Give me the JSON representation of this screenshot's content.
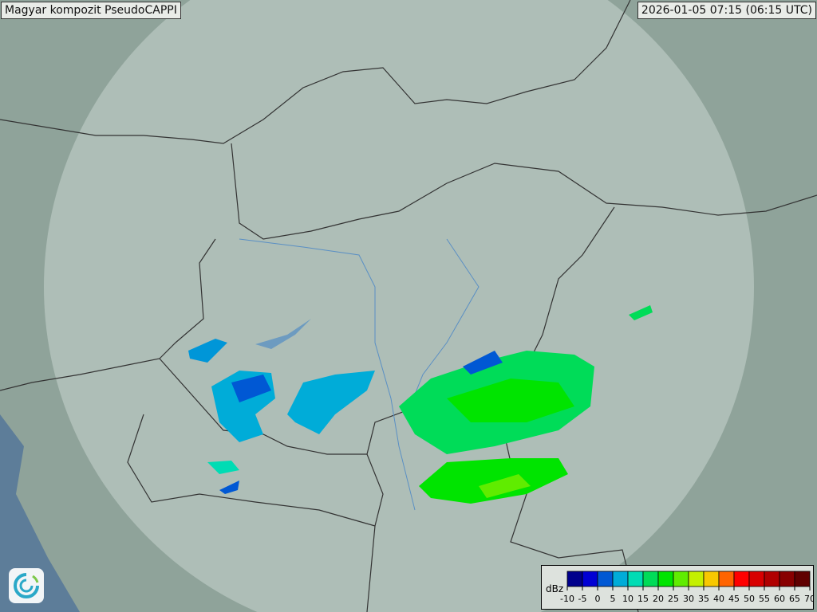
{
  "title": "Magyar kompozit  PseudoCAPPI",
  "timestamp": "2026-01-05 07:15 (06:15 UTC)",
  "legend": {
    "unit": "dBz",
    "ticks": [
      "-10",
      "-5",
      "0",
      "5",
      "10",
      "15",
      "20",
      "25",
      "30",
      "35",
      "40",
      "45",
      "50",
      "55",
      "60",
      "65",
      "70"
    ],
    "colors": [
      "#00008c",
      "#0000d4",
      "#0058d4",
      "#00acd8",
      "#00dcb4",
      "#00dc58",
      "#00e400",
      "#60ec00",
      "#c4f000",
      "#f8c800",
      "#ff6400",
      "#ff0000",
      "#d80000",
      "#b00000",
      "#880000",
      "#600000"
    ]
  },
  "colors": {
    "map_background": "#8fa39a",
    "radar_coverage": "#c9d6cf",
    "borders": "#333333",
    "rivers": "#5a8fc4",
    "sea": "#5d7d99"
  },
  "logo": {
    "icon": "met-service-swirl-logo"
  }
}
